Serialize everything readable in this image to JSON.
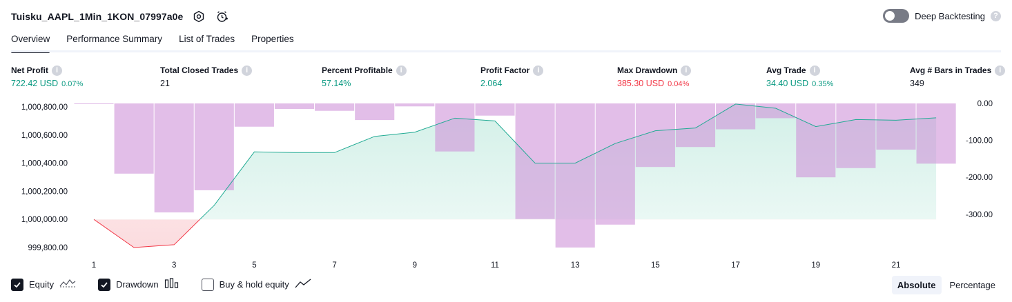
{
  "header": {
    "title": "Tuisku_AAPL_1Min_1KON_07997a0e"
  },
  "deep_backtesting": {
    "label": "Deep Backtesting",
    "enabled": false
  },
  "tabs": [
    {
      "label": "Overview",
      "active": true
    },
    {
      "label": "Performance Summary",
      "active": false
    },
    {
      "label": "List of Trades",
      "active": false
    },
    {
      "label": "Properties",
      "active": false
    }
  ],
  "metrics": [
    {
      "label": "Net Profit",
      "value": "722.42 USD",
      "pct": "0.07%",
      "tone": "pos"
    },
    {
      "label": "Total Closed Trades",
      "value": "21",
      "pct": "",
      "tone": "neutral"
    },
    {
      "label": "Percent Profitable",
      "value": "57.14%",
      "pct": "",
      "tone": "pos"
    },
    {
      "label": "Profit Factor",
      "value": "2.064",
      "pct": "",
      "tone": "pos"
    },
    {
      "label": "Max Drawdown",
      "value": "385.30 USD",
      "pct": "0.04%",
      "tone": "neg"
    },
    {
      "label": "Avg Trade",
      "value": "34.40 USD",
      "pct": "0.35%",
      "tone": "pos"
    },
    {
      "label": "Avg # Bars in Trades",
      "value": "349",
      "pct": "",
      "tone": "neutral"
    }
  ],
  "chart_data": {
    "type": "line",
    "x": [
      1,
      2,
      3,
      4,
      5,
      6,
      7,
      8,
      9,
      10,
      11,
      12,
      13,
      14,
      15,
      16,
      17,
      18,
      19,
      20,
      21,
      22
    ],
    "x_ticks": [
      "1",
      "3",
      "5",
      "7",
      "9",
      "11",
      "13",
      "15",
      "17",
      "19",
      "21"
    ],
    "equity": [
      1000000,
      999800,
      999820,
      1000100,
      1000480,
      1000475,
      1000475,
      1000590,
      1000620,
      1000720,
      1000700,
      1000400,
      1000400,
      1000540,
      1000630,
      1000650,
      1000820,
      1000790,
      1000660,
      1000710,
      1000705,
      1000722
    ],
    "equity_baseline": 1000000,
    "left_axis": {
      "ticks": [
        "1,000,800.00",
        "1,000,600.00",
        "1,000,400.00",
        "1,000,200.00",
        "1,000,000.00",
        "999,800.00"
      ],
      "range": [
        999800,
        1000800
      ]
    },
    "drawdown": [
      0,
      -190,
      -295,
      -235,
      -63,
      -15,
      -20,
      -45,
      -8,
      -130,
      -33,
      -313,
      -390,
      -328,
      -172,
      -118,
      -70,
      -40,
      -200,
      -175,
      -125,
      -163
    ],
    "right_axis": {
      "ticks": [
        "0.00",
        "-100.00",
        "-200.00",
        "-300.00"
      ],
      "range": [
        -390,
        0
      ]
    },
    "colors": {
      "equity_line": "#22ab94",
      "equity_fill": "#d3f0e8",
      "loss_line": "#f23645",
      "loss_fill": "#fbdcdf",
      "drawdown_bar": "#ce93d8",
      "drawdown_overlap": "#b2a7e8"
    }
  },
  "legend": [
    {
      "label": "Equity",
      "checked": true,
      "icon": "equity-line-icon"
    },
    {
      "label": "Drawdown",
      "checked": true,
      "icon": "bars-icon"
    },
    {
      "label": "Buy & hold equity",
      "checked": false,
      "icon": "trend-line-icon"
    }
  ],
  "scale_mode": {
    "options": [
      "Absolute",
      "Percentage"
    ],
    "selected": "Absolute"
  }
}
